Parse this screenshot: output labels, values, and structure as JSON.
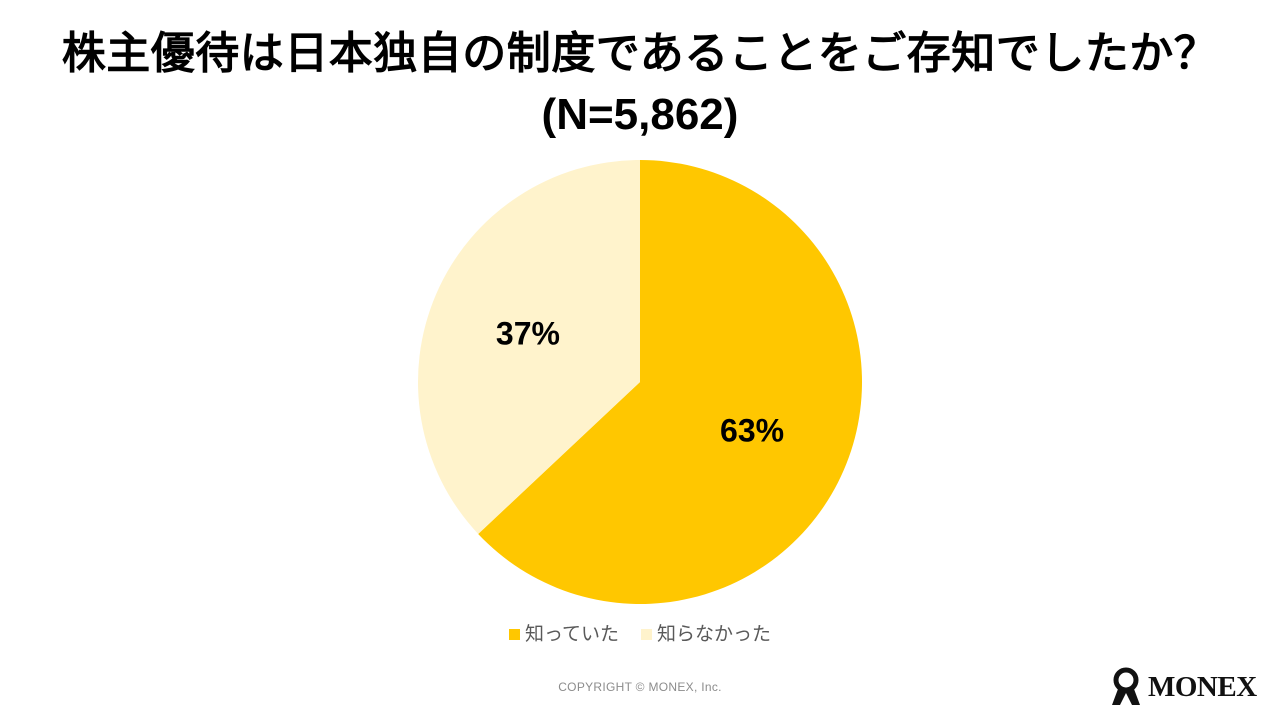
{
  "title": "株主優待は日本独自の制度であることをご存知でしたか？",
  "subtitle": "(N=5,862)",
  "chart_data": {
    "type": "pie",
    "title": "株主優待は日本独自の制度であることをご存知でしたか？",
    "subtitle": "(N=5,862)",
    "slices": [
      {
        "name": "知っていた",
        "value": 63,
        "label": "63%",
        "color": "#FFC700"
      },
      {
        "name": "知らなかった",
        "value": 37,
        "label": "37%",
        "color": "#FFF3CC"
      }
    ],
    "start_angle": "12 o'clock, clockwise",
    "legend_position": "bottom"
  },
  "footer": {
    "copyright": "COPYRIGHT © MONEX, Inc."
  },
  "logo": {
    "text": "MONEX",
    "icon": "monex-logo-icon"
  }
}
